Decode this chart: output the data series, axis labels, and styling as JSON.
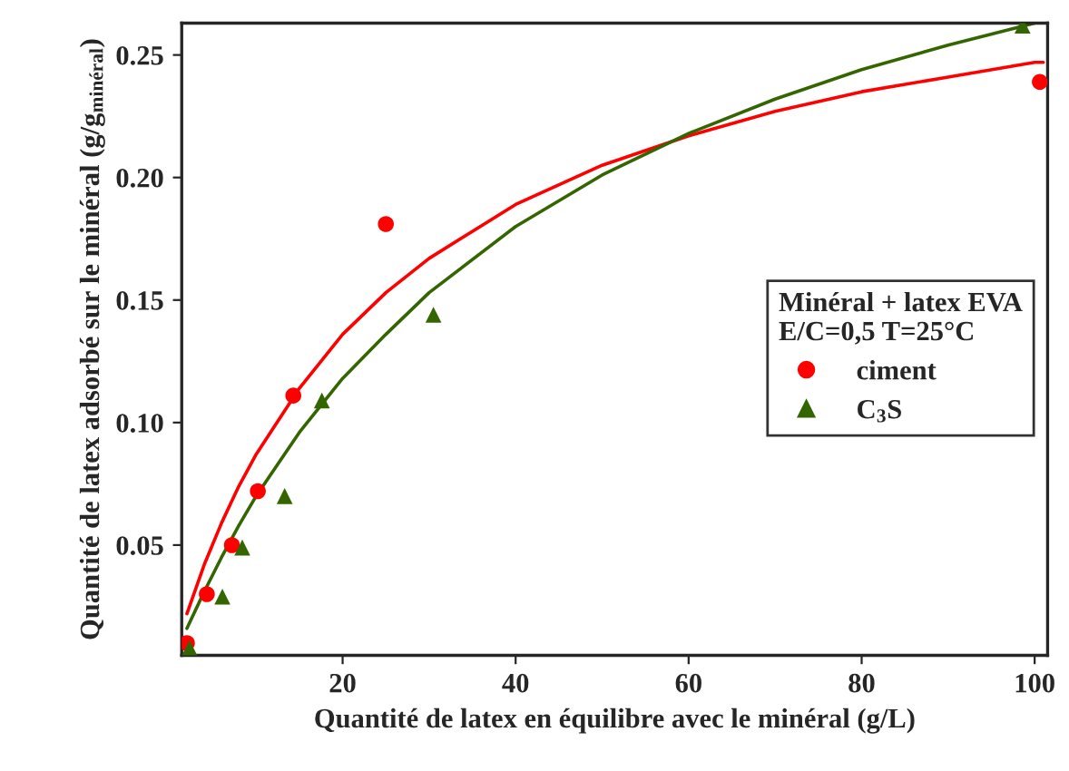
{
  "chart_data": {
    "type": "scatter",
    "xlabel": "Quantité de latex en équilibre avec le minéral (g/L)",
    "ylabel": "Quantité de latex adsorbé sur le minéral (g/g$_{minéral}$)",
    "legend_title": "Minéral + latex EVA\nE/C=0,5 T=25°C",
    "xlim": [
      1.4,
      101.5
    ],
    "ylim": [
      0.005,
      0.263
    ],
    "xticks": [
      20,
      40,
      60,
      80,
      100
    ],
    "yticks": [
      {
        "value": 0.05,
        "label": "0.05"
      },
      {
        "value": 0.1,
        "label": "0.10"
      },
      {
        "value": 0.15,
        "label": "0.15"
      },
      {
        "value": 0.2,
        "label": "0.20"
      },
      {
        "value": 0.25,
        "label": "0.25"
      }
    ],
    "grid": false,
    "legend": "right",
    "series": [
      {
        "type": "line",
        "color": "#ff0000",
        "line_style": "solid",
        "marker": "none",
        "x": [
          2,
          4,
          6,
          8,
          10,
          15,
          20,
          25,
          30,
          40,
          50,
          60,
          70,
          80,
          90,
          100,
          101
        ],
        "values": [
          0.022,
          0.042,
          0.059,
          0.074,
          0.087,
          0.114,
          0.136,
          0.153,
          0.167,
          0.189,
          0.205,
          0.217,
          0.227,
          0.235,
          0.241,
          0.247,
          0.247
        ]
      },
      {
        "type": "line",
        "color": "#336600",
        "line_style": "solid",
        "marker": "none",
        "x": [
          2,
          4,
          6,
          8,
          10,
          15,
          20,
          25,
          30,
          40,
          50,
          60,
          70,
          80,
          90,
          100
        ],
        "values": [
          0.016,
          0.031,
          0.045,
          0.058,
          0.07,
          0.096,
          0.118,
          0.136,
          0.153,
          0.18,
          0.201,
          0.218,
          0.232,
          0.244,
          0.254,
          0.263
        ]
      },
      {
        "name": "ciment",
        "color": "#ff0000",
        "marker": "circle",
        "x": [
          2.0,
          4.3,
          7.2,
          10.2,
          14.3,
          25.0,
          100.6
        ],
        "values": [
          0.01,
          0.03,
          0.05,
          0.072,
          0.111,
          0.181,
          0.239
        ]
      },
      {
        "name": "C$_{3}$S",
        "color": "#336600",
        "marker": "triangle",
        "x": [
          2.3,
          6.1,
          8.4,
          13.3,
          17.6,
          30.5,
          98.6
        ],
        "values": [
          0.008,
          0.029,
          0.049,
          0.07,
          0.109,
          0.144,
          0.262
        ]
      }
    ]
  }
}
